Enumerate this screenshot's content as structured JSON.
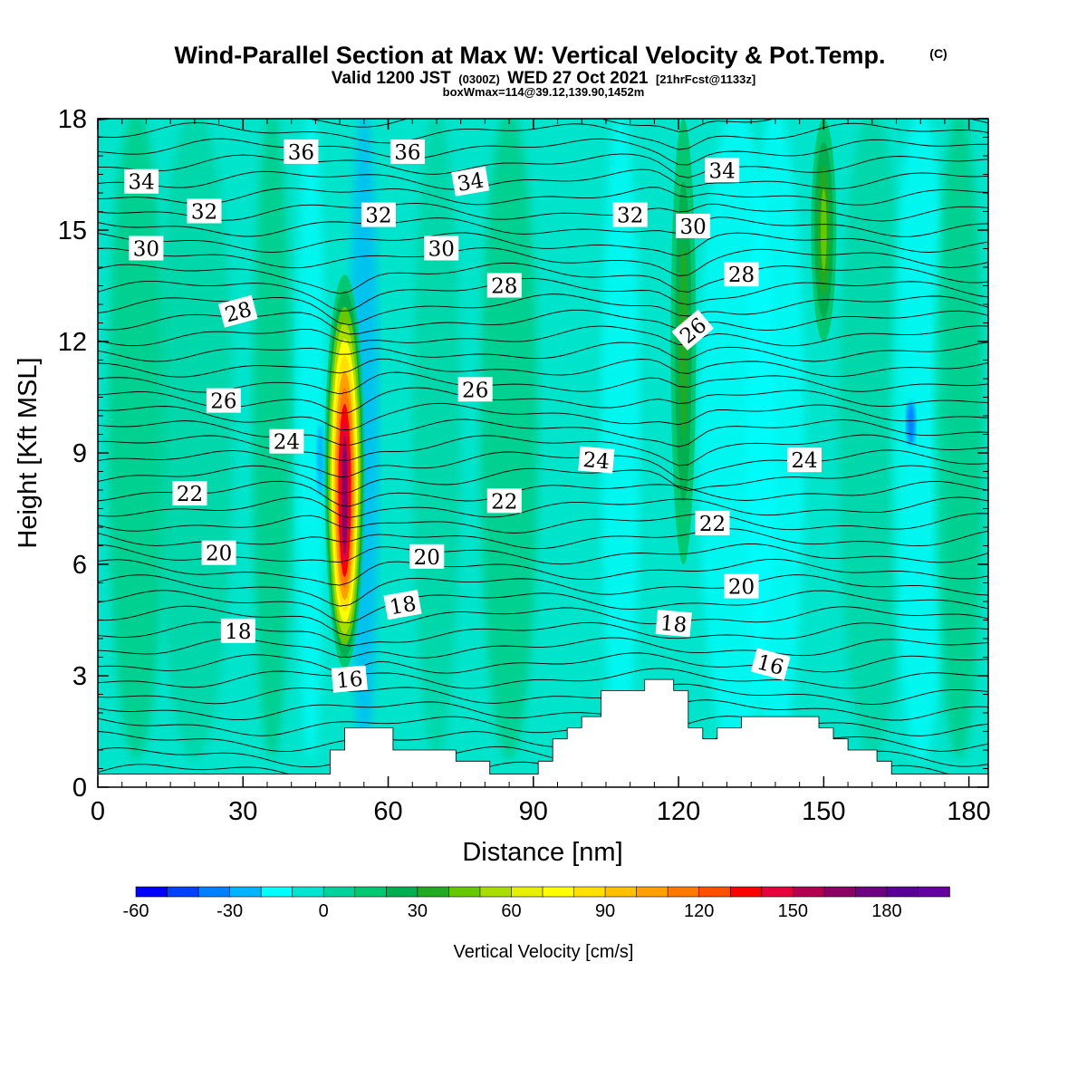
{
  "chart_data": {
    "type": "heatmap",
    "title": "Wind-Parallel Section at Max W: Vertical Velocity & Pot.Temp.",
    "title_mark": "(C)",
    "subtitle_main": "Valid 1200 JST",
    "subtitle_utc": "(0300Z)",
    "subtitle_date": "WED 27 Oct 2021",
    "subtitle_fcst": "[21hrFcst@1133z]",
    "subtitle2": "boxWmax=114@39.12,139.90,1452m",
    "xlabel": "Distance [nm]",
    "ylabel": "Height [Kft MSL]",
    "xlim": [
      0,
      184
    ],
    "ylim": [
      0,
      18
    ],
    "xticks": [
      0,
      30,
      60,
      90,
      120,
      150,
      180
    ],
    "yticks": [
      0,
      3,
      6,
      9,
      12,
      15,
      18
    ],
    "colorbar": {
      "label": "Vertical Velocity [cm/s]",
      "ticks": [
        -60,
        -30,
        0,
        30,
        60,
        90,
        120,
        150,
        180
      ],
      "range": [
        -60,
        200
      ],
      "colors": [
        "#0000ff",
        "#0040ff",
        "#0080ff",
        "#00b4ff",
        "#00ffff",
        "#00e4d0",
        "#00d29c",
        "#00c870",
        "#00b050",
        "#22aa22",
        "#66c800",
        "#aade00",
        "#e6f000",
        "#ffff00",
        "#ffe000",
        "#ffc000",
        "#ffa000",
        "#ff7800",
        "#ff5000",
        "#ff0000",
        "#e6003c",
        "#b40050",
        "#8c0064",
        "#6e0082",
        "#5a0096",
        "#6600a0"
      ]
    },
    "updraft_features": [
      {
        "name": "main updraft",
        "x_center": 51,
        "z_bottom": 3.2,
        "z_top": 13.8,
        "max_w": 160
      },
      {
        "name": "weak updraft",
        "x_center": 121,
        "z_bottom": 6.0,
        "z_top": 18.0,
        "max_w": 35
      },
      {
        "name": "weak updraft",
        "x_center": 150,
        "z_bottom": 12.0,
        "z_top": 18.0,
        "max_w": 45
      }
    ],
    "theta_levels": [
      16,
      18,
      20,
      22,
      24,
      26,
      28,
      30,
      32,
      34,
      36
    ],
    "theta_labels": [
      {
        "text": "36",
        "x": 42,
        "y": 17.1,
        "rot": 0
      },
      {
        "text": "36",
        "x": 64,
        "y": 17.1,
        "rot": 0
      },
      {
        "text": "34",
        "x": 9,
        "y": 16.3,
        "rot": 0
      },
      {
        "text": "34",
        "x": 77,
        "y": 16.3,
        "rot": -10
      },
      {
        "text": "34",
        "x": 129,
        "y": 16.6,
        "rot": 0
      },
      {
        "text": "32",
        "x": 22,
        "y": 15.5,
        "rot": 0
      },
      {
        "text": "32",
        "x": 58,
        "y": 15.4,
        "rot": 0
      },
      {
        "text": "32",
        "x": 110,
        "y": 15.4,
        "rot": 0
      },
      {
        "text": "30",
        "x": 10,
        "y": 14.5,
        "rot": 0
      },
      {
        "text": "30",
        "x": 71,
        "y": 14.5,
        "rot": 0
      },
      {
        "text": "30",
        "x": 123,
        "y": 15.1,
        "rot": 0
      },
      {
        "text": "28",
        "x": 29,
        "y": 12.8,
        "rot": -15
      },
      {
        "text": "28",
        "x": 84,
        "y": 13.5,
        "rot": 0
      },
      {
        "text": "28",
        "x": 133,
        "y": 13.8,
        "rot": 0
      },
      {
        "text": "26",
        "x": 26,
        "y": 10.4,
        "rot": 0
      },
      {
        "text": "26",
        "x": 78,
        "y": 10.7,
        "rot": 0
      },
      {
        "text": "26",
        "x": 123,
        "y": 12.3,
        "rot": -40
      },
      {
        "text": "24",
        "x": 39,
        "y": 9.3,
        "rot": 0
      },
      {
        "text": "24",
        "x": 103,
        "y": 8.8,
        "rot": 5
      },
      {
        "text": "24",
        "x": 146,
        "y": 8.8,
        "rot": 0
      },
      {
        "text": "22",
        "x": 19,
        "y": 7.9,
        "rot": 0
      },
      {
        "text": "22",
        "x": 84,
        "y": 7.7,
        "rot": 0
      },
      {
        "text": "22",
        "x": 127,
        "y": 7.1,
        "rot": 0
      },
      {
        "text": "20",
        "x": 25,
        "y": 6.3,
        "rot": 0
      },
      {
        "text": "20",
        "x": 68,
        "y": 6.2,
        "rot": 0
      },
      {
        "text": "20",
        "x": 133,
        "y": 5.4,
        "rot": 0
      },
      {
        "text": "18",
        "x": 29,
        "y": 4.2,
        "rot": 0
      },
      {
        "text": "18",
        "x": 63,
        "y": 4.9,
        "rot": -10
      },
      {
        "text": "18",
        "x": 119,
        "y": 4.4,
        "rot": 5
      },
      {
        "text": "16",
        "x": 52,
        "y": 2.9,
        "rot": -5
      },
      {
        "text": "16",
        "x": 139,
        "y": 3.3,
        "rot": 15
      }
    ],
    "terrain": [
      [
        0,
        0.35
      ],
      [
        48,
        0.35
      ],
      [
        48,
        1.0
      ],
      [
        51,
        1.0
      ],
      [
        51,
        1.6
      ],
      [
        61,
        1.6
      ],
      [
        61,
        1.0
      ],
      [
        74,
        1.0
      ],
      [
        74,
        0.7
      ],
      [
        81,
        0.7
      ],
      [
        81,
        0.35
      ],
      [
        91,
        0.35
      ],
      [
        91,
        0.7
      ],
      [
        94,
        0.7
      ],
      [
        94,
        1.3
      ],
      [
        97,
        1.3
      ],
      [
        97,
        1.6
      ],
      [
        100,
        1.6
      ],
      [
        100,
        1.9
      ],
      [
        104,
        1.9
      ],
      [
        104,
        2.6
      ],
      [
        113,
        2.6
      ],
      [
        113,
        2.9
      ],
      [
        119,
        2.9
      ],
      [
        119,
        2.6
      ],
      [
        122,
        2.6
      ],
      [
        122,
        1.6
      ],
      [
        125,
        1.6
      ],
      [
        125,
        1.3
      ],
      [
        128,
        1.3
      ],
      [
        128,
        1.6
      ],
      [
        133,
        1.6
      ],
      [
        133,
        1.9
      ],
      [
        149,
        1.9
      ],
      [
        149,
        1.6
      ],
      [
        152,
        1.6
      ],
      [
        152,
        1.3
      ],
      [
        155,
        1.3
      ],
      [
        155,
        1.0
      ],
      [
        161,
        1.0
      ],
      [
        161,
        0.7
      ],
      [
        164,
        0.7
      ],
      [
        164,
        0.35
      ],
      [
        184,
        0.35
      ]
    ]
  }
}
